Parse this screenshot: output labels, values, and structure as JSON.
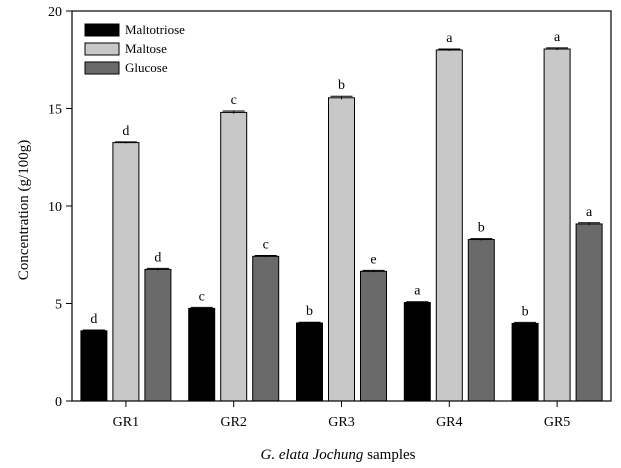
{
  "chart_data": {
    "type": "bar",
    "categories": [
      "GR1",
      "GR2",
      "GR3",
      "GR4",
      "GR5"
    ],
    "series": [
      {
        "name": "Maltotriose",
        "color": "#000000",
        "values": [
          3.6,
          4.75,
          4.0,
          5.05,
          3.98
        ],
        "errors": [
          0.04,
          0.05,
          0.04,
          0.04,
          0.05
        ],
        "letters": [
          "d",
          "c",
          "b",
          "a",
          "b"
        ]
      },
      {
        "name": "Maltose",
        "color": "#c8c8c8",
        "values": [
          13.25,
          14.8,
          15.55,
          18.0,
          18.05
        ],
        "errors": [
          0.04,
          0.07,
          0.08,
          0.05,
          0.06
        ],
        "letters": [
          "d",
          "c",
          "b",
          "a",
          "a"
        ]
      },
      {
        "name": "Glucose",
        "color": "#6a6a6a",
        "values": [
          6.75,
          7.42,
          6.65,
          8.28,
          9.08
        ],
        "errors": [
          0.05,
          0.04,
          0.05,
          0.05,
          0.06
        ],
        "letters": [
          "d",
          "c",
          "e",
          "b",
          "a"
        ]
      }
    ],
    "ylim": [
      0,
      20
    ],
    "yticks": [
      0,
      5,
      10,
      15,
      20
    ],
    "ylabel": "Concentration (g/100g)",
    "xlabel_italic": "G. elata Jochung",
    "xlabel_rest": " samples",
    "legend_position": "top-left"
  }
}
